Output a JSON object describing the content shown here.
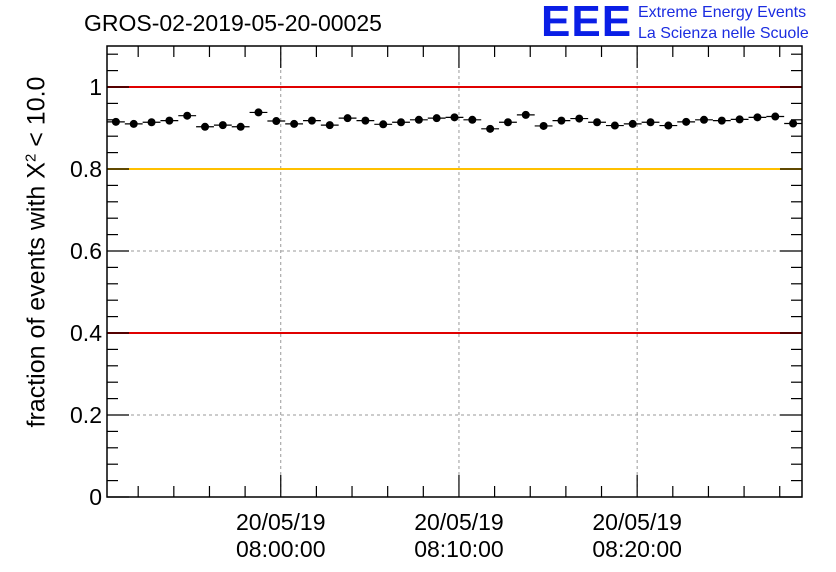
{
  "header": {
    "run_id": "GROS-02-2019-05-20-00025",
    "logo_mark": "EEE",
    "logo_line1": "Extreme Energy Events",
    "logo_line2": "La Scienza nelle Scuole"
  },
  "colors": {
    "axis": "#000000",
    "grid": "#999999",
    "limit_red": "#e00000",
    "limit_yellow": "#ffc000",
    "points": "#000000",
    "logo_blue": "#0a1ee6"
  },
  "chart_data": {
    "type": "scatter",
    "title": "GROS-02-2019-05-20-00025",
    "ylabel": {
      "prefix": "fraction of events with ",
      "symbol": "X",
      "power": "2",
      "suffix": " < 10.0"
    },
    "xlabel": "",
    "ylim": [
      0,
      1.1
    ],
    "xlim_minutes": [
      -9.75,
      29.25
    ],
    "y_ticks": [
      "0",
      "0.2",
      "0.4",
      "0.6",
      "0.8",
      "1"
    ],
    "y_tick_values": [
      0,
      0.2,
      0.4,
      0.6,
      0.8,
      1.0
    ],
    "x_ticks": [
      {
        "minute": 0,
        "date": "20/05/19",
        "time": "08:00:00"
      },
      {
        "minute": 10,
        "date": "20/05/19",
        "time": "08:10:00"
      },
      {
        "minute": 20,
        "date": "20/05/19",
        "time": "08:20:00"
      }
    ],
    "grid": true,
    "reference_lines": [
      {
        "y": 1.0,
        "color": "red"
      },
      {
        "y": 0.8,
        "color": "yellow"
      },
      {
        "y": 0.4,
        "color": "red"
      }
    ],
    "bin_width_minutes": 1,
    "x_minutes": [
      -9.25,
      -8.25,
      -7.25,
      -6.25,
      -5.25,
      -4.25,
      -3.25,
      -2.25,
      -1.25,
      -0.25,
      0.75,
      1.75,
      2.75,
      3.75,
      4.75,
      5.75,
      6.75,
      7.75,
      8.75,
      9.75,
      10.75,
      11.75,
      12.75,
      13.75,
      14.75,
      15.75,
      16.75,
      17.75,
      18.75,
      19.75,
      20.75,
      21.75,
      22.75,
      23.75,
      24.75,
      25.75,
      26.75,
      27.75,
      28.75
    ],
    "y": [
      0.915,
      0.91,
      0.914,
      0.918,
      0.93,
      0.903,
      0.907,
      0.903,
      0.938,
      0.917,
      0.91,
      0.918,
      0.907,
      0.924,
      0.918,
      0.909,
      0.914,
      0.92,
      0.924,
      0.926,
      0.92,
      0.898,
      0.914,
      0.932,
      0.905,
      0.918,
      0.923,
      0.914,
      0.906,
      0.91,
      0.914,
      0.906,
      0.915,
      0.92,
      0.918,
      0.921,
      0.926,
      0.928,
      0.911
    ]
  }
}
